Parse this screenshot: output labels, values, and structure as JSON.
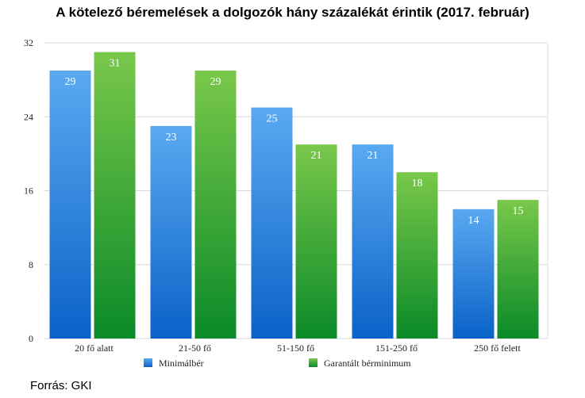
{
  "source_text": "Forrás: GKI",
  "colors": {
    "series_blue_top": "#5aa9f0",
    "series_blue_bottom": "#0a62c8",
    "series_green_top": "#79c84a",
    "series_green_bottom": "#0a8a28",
    "grid": "#d9d9d9"
  },
  "chart_data": {
    "type": "bar",
    "title": "A kötelező béremelések a dolgozók hány százalékát érintik (2017. február)",
    "categories": [
      "20 fő alatt",
      "21-50 fő",
      "51-150 fő",
      "151-250 fő",
      "250 fő felett"
    ],
    "series": [
      {
        "name": "Minimálbér",
        "values": [
          29,
          23,
          25,
          21,
          14
        ],
        "color": "blue"
      },
      {
        "name": "Garantált bérminimum",
        "values": [
          31,
          29,
          21,
          18,
          15
        ],
        "color": "green"
      }
    ],
    "data_labels": [
      [
        "29",
        "23",
        "25",
        "21",
        "14"
      ],
      [
        "31",
        "29",
        "21",
        "18",
        "15"
      ]
    ],
    "yticks": [
      0,
      8,
      16,
      24,
      32
    ],
    "ylim": [
      0,
      32
    ],
    "grid": true,
    "legend_position": "bottom"
  }
}
